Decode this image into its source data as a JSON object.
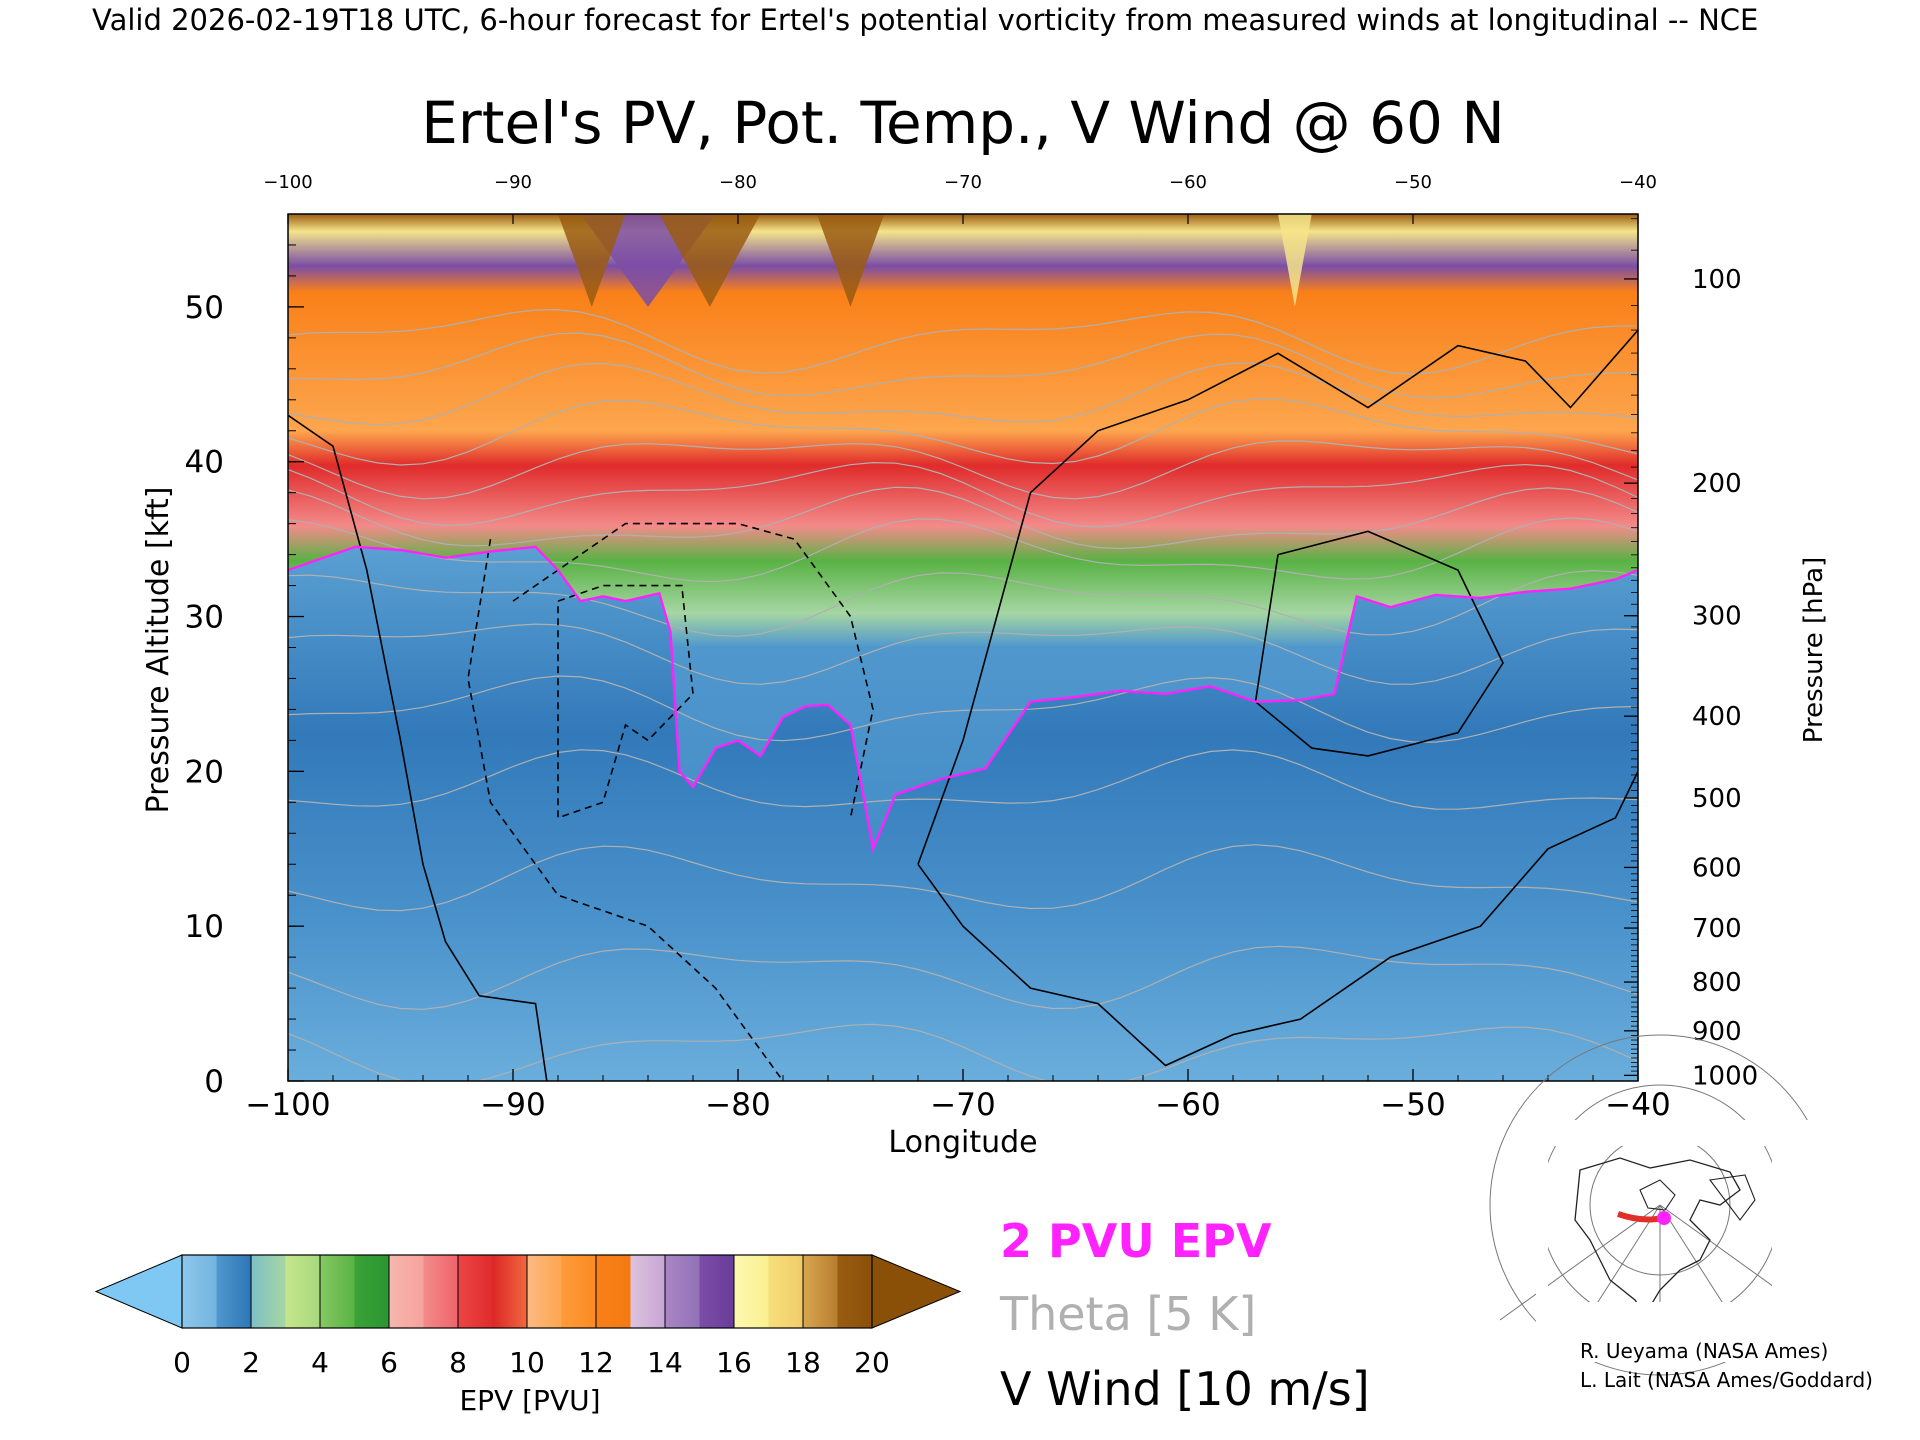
{
  "header": {
    "valid_line": "Valid 2026-02-19T18 UTC, 6-hour forecast for Ertel's potential vorticity from measured winds at longitudinal -- NCE"
  },
  "chart_data": {
    "type": "heatmap",
    "title": "Ertel's PV, Pot. Temp., V Wind @ 60 N",
    "xlabel": "Longitude",
    "ylabel": "Pressure Altitude [kft]",
    "ylabel_right": "Pressure [hPa]",
    "xlim": [
      -100,
      -40
    ],
    "ylim": [
      0,
      56
    ],
    "x_ticks": [
      -100,
      -90,
      -80,
      -70,
      -60,
      -50,
      -40
    ],
    "x_tick_labels": [
      "−100",
      "−90",
      "−80",
      "−70",
      "−60",
      "−50",
      "−40"
    ],
    "top_tick_labels": [
      "−100",
      "−90",
      "−80",
      "−70",
      "−60",
      "−50",
      "−40"
    ],
    "y_ticks": [
      0,
      10,
      20,
      30,
      40,
      50
    ],
    "y_tick_labels": [
      "0",
      "10",
      "20",
      "30",
      "40",
      "50"
    ],
    "pressure_ticks": [
      {
        "hpa": 100,
        "label": "100"
      },
      {
        "hpa": 200,
        "label": "200"
      },
      {
        "hpa": 300,
        "label": "300"
      },
      {
        "hpa": 400,
        "label": "400"
      },
      {
        "hpa": 500,
        "label": "500"
      },
      {
        "hpa": 600,
        "label": "600"
      },
      {
        "hpa": 700,
        "label": "700"
      },
      {
        "hpa": 800,
        "label": "800"
      },
      {
        "hpa": 900,
        "label": "900"
      },
      {
        "hpa": 1000,
        "label": "1000"
      }
    ],
    "pv_2pvu_boundary": {
      "lon": [
        -100,
        -99,
        -97,
        -95,
        -93,
        -91,
        -89,
        -88,
        -87,
        -86,
        -85,
        -83.5,
        -83,
        -82.6,
        -82,
        -81,
        -80,
        -79,
        -78,
        -77,
        -76,
        -75,
        -74.5,
        -74,
        -73,
        -71,
        -69,
        -67,
        -65,
        -63,
        -61,
        -59,
        -57,
        -55,
        -53.5,
        -52.5,
        -51,
        -49,
        -47,
        -45,
        -43,
        -41,
        -40
      ],
      "alt": [
        33,
        33.5,
        34.5,
        34.3,
        33.8,
        34.2,
        34.5,
        33,
        31,
        31.3,
        31,
        31.5,
        29,
        20,
        19,
        21.5,
        22,
        21,
        23.5,
        24.2,
        24.3,
        23,
        19,
        15,
        18.5,
        19.5,
        20.2,
        24.5,
        24.8,
        25.2,
        25,
        25.5,
        24.5,
        24.6,
        25,
        31.3,
        30.6,
        31.4,
        31.2,
        31.6,
        31.8,
        32.4,
        33
      ]
    },
    "theta_contours_K": [
      270,
      280,
      290,
      300,
      310,
      320,
      330,
      340,
      350,
      360,
      370,
      380,
      390,
      400,
      410
    ],
    "vwind_contours_ms": [
      -30,
      -20,
      -10,
      0,
      10
    ],
    "colorbar": {
      "label": "EPV [PVU]",
      "ticks": [
        0,
        2,
        4,
        6,
        8,
        10,
        12,
        14,
        16,
        18,
        20
      ],
      "tick_labels": [
        "0",
        "2",
        "4",
        "6",
        "8",
        "10",
        "12",
        "14",
        "16",
        "18",
        "20"
      ],
      "extend": "both",
      "segments": [
        {
          "from": 0,
          "to": 1,
          "colors": [
            "#8ec7ea",
            "#72b4df"
          ]
        },
        {
          "from": 1,
          "to": 2,
          "colors": [
            "#4f97cd",
            "#2d76b7"
          ]
        },
        {
          "from": 2,
          "to": 3,
          "colors": [
            "#7ec0c6",
            "#a6d6a3"
          ]
        },
        {
          "from": 3,
          "to": 4,
          "colors": [
            "#c6e68c",
            "#a7d77d"
          ]
        },
        {
          "from": 4,
          "to": 5,
          "colors": [
            "#86c963",
            "#59b244"
          ]
        },
        {
          "from": 5,
          "to": 6,
          "colors": [
            "#3aa237",
            "#2a9530"
          ]
        },
        {
          "from": 6,
          "to": 7,
          "colors": [
            "#f6b7ae",
            "#f6a29c"
          ]
        },
        {
          "from": 7,
          "to": 8,
          "colors": [
            "#f38b8a",
            "#ee6369"
          ]
        },
        {
          "from": 8,
          "to": 9,
          "colors": [
            "#ec4545",
            "#e02b2b"
          ]
        },
        {
          "from": 9,
          "to": 10,
          "colors": [
            "#dc2626",
            "#f06a3f"
          ]
        },
        {
          "from": 10,
          "to": 11,
          "colors": [
            "#fdba84",
            "#fda64e"
          ]
        },
        {
          "from": 11,
          "to": 12,
          "colors": [
            "#fe9b3a",
            "#fc8a22"
          ]
        },
        {
          "from": 12,
          "to": 13,
          "colors": [
            "#f98018",
            "#f47a12"
          ]
        },
        {
          "from": 13,
          "to": 14,
          "colors": [
            "#dcc3de",
            "#c8a5d5"
          ]
        },
        {
          "from": 14,
          "to": 15,
          "colors": [
            "#aa86c4",
            "#9270b6"
          ]
        },
        {
          "from": 15,
          "to": 16,
          "colors": [
            "#7b4ea6",
            "#6a3c9a"
          ]
        },
        {
          "from": 16,
          "to": 17,
          "colors": [
            "#fdf8b0",
            "#fbef90"
          ]
        },
        {
          "from": 17,
          "to": 18,
          "colors": [
            "#f7df7c",
            "#f0cc6a"
          ]
        },
        {
          "from": 18,
          "to": 19,
          "colors": [
            "#d9a650",
            "#b77d2e"
          ]
        },
        {
          "from": 19,
          "to": 20,
          "colors": [
            "#9a5c12",
            "#8a5008"
          ]
        }
      ],
      "under_color": "#80c8f4",
      "over_color": "#8a5008"
    }
  },
  "legend": {
    "pv_line": "2 PVU EPV",
    "pv_line_color": "#ff22ff",
    "theta_line": "Theta [5 K]",
    "theta_color": "#b0b0b0",
    "vwind_line": "V Wind [10 m/s]",
    "vwind_color": "#000000"
  },
  "inset_map": {
    "name": "polar-stereographic-locator-map",
    "track_color": "#e0302a",
    "marker_color": "#ff22ff"
  },
  "credits": {
    "line1": "R. Ueyama (NASA Ames)",
    "line2": "L. Lait (NASA Ames/Goddard)"
  }
}
